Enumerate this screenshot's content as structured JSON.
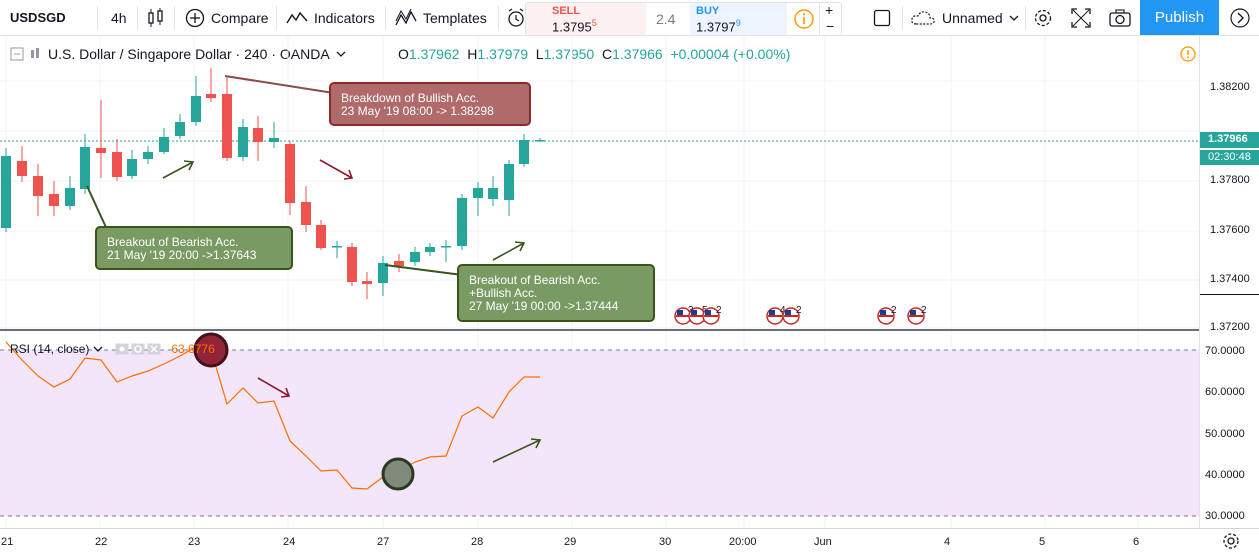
{
  "toolbar": {
    "symbol": "USDSGD",
    "interval": "4h",
    "compare": "Compare",
    "indicators": "Indicators",
    "templates": "Templates",
    "sell_label": "SELL",
    "sell_price_main": "1.3795",
    "sell_price_sup": "5",
    "spread": "2.4",
    "buy_label": "BUY",
    "buy_price_main": "1.3797",
    "buy_price_sup": "9",
    "layout_name": "Unnamed",
    "publish": "Publish"
  },
  "legend": {
    "title": "U.S. Dollar / Singapore Dollar · 240 · OANDA",
    "o_label": "O",
    "o": "1.37962",
    "h_label": "H",
    "h": "1.37979",
    "l_label": "L",
    "l": "1.37950",
    "c_label": "C",
    "c": "1.37966",
    "change": "+0.00004 (+0.00%)"
  },
  "callouts": {
    "breakdown_line1": "Breakdown of Bullish Acc.",
    "breakdown_line2": "23 May '19 08:00 -> 1.38298",
    "breakout1_line1": "Breakout of Bearish Acc.",
    "breakout1_line2": "21 May '19 20:00 ->1.37643",
    "breakout2_line1": "Breakout of Bearish Acc.",
    "breakout2_line2": "+Bullish Acc.",
    "breakout2_line3": "27 May '19 00:00 ->1.37444"
  },
  "rsi": {
    "label": "RSI (14, close)",
    "value": "63.6776"
  },
  "price_axis": {
    "ticks": [
      "1.38200",
      "1.37800",
      "1.37600",
      "1.37400",
      "1.37200"
    ],
    "current_price": "1.37966",
    "countdown": "02:30:48"
  },
  "rsi_axis": {
    "ticks": [
      "70.0000",
      "60.0000",
      "50.0000",
      "40.0000",
      "30.0000"
    ]
  },
  "time_axis": {
    "ticks": [
      "21",
      "22",
      "23",
      "24",
      "27",
      "28",
      "29",
      "30",
      "20:00",
      "Jun",
      "4",
      "5",
      "6"
    ]
  },
  "event_badges": [
    "3",
    "5",
    "2",
    "4",
    "2",
    "2",
    "2"
  ],
  "colors": {
    "up": "#26a69a",
    "down": "#ef5350",
    "rsi_line": "#ff6d00",
    "rsi_band": "#f3e6fb",
    "callout_red": "#b06a6a",
    "callout_green": "#7a9a63",
    "accent": "#2196f3"
  }
}
